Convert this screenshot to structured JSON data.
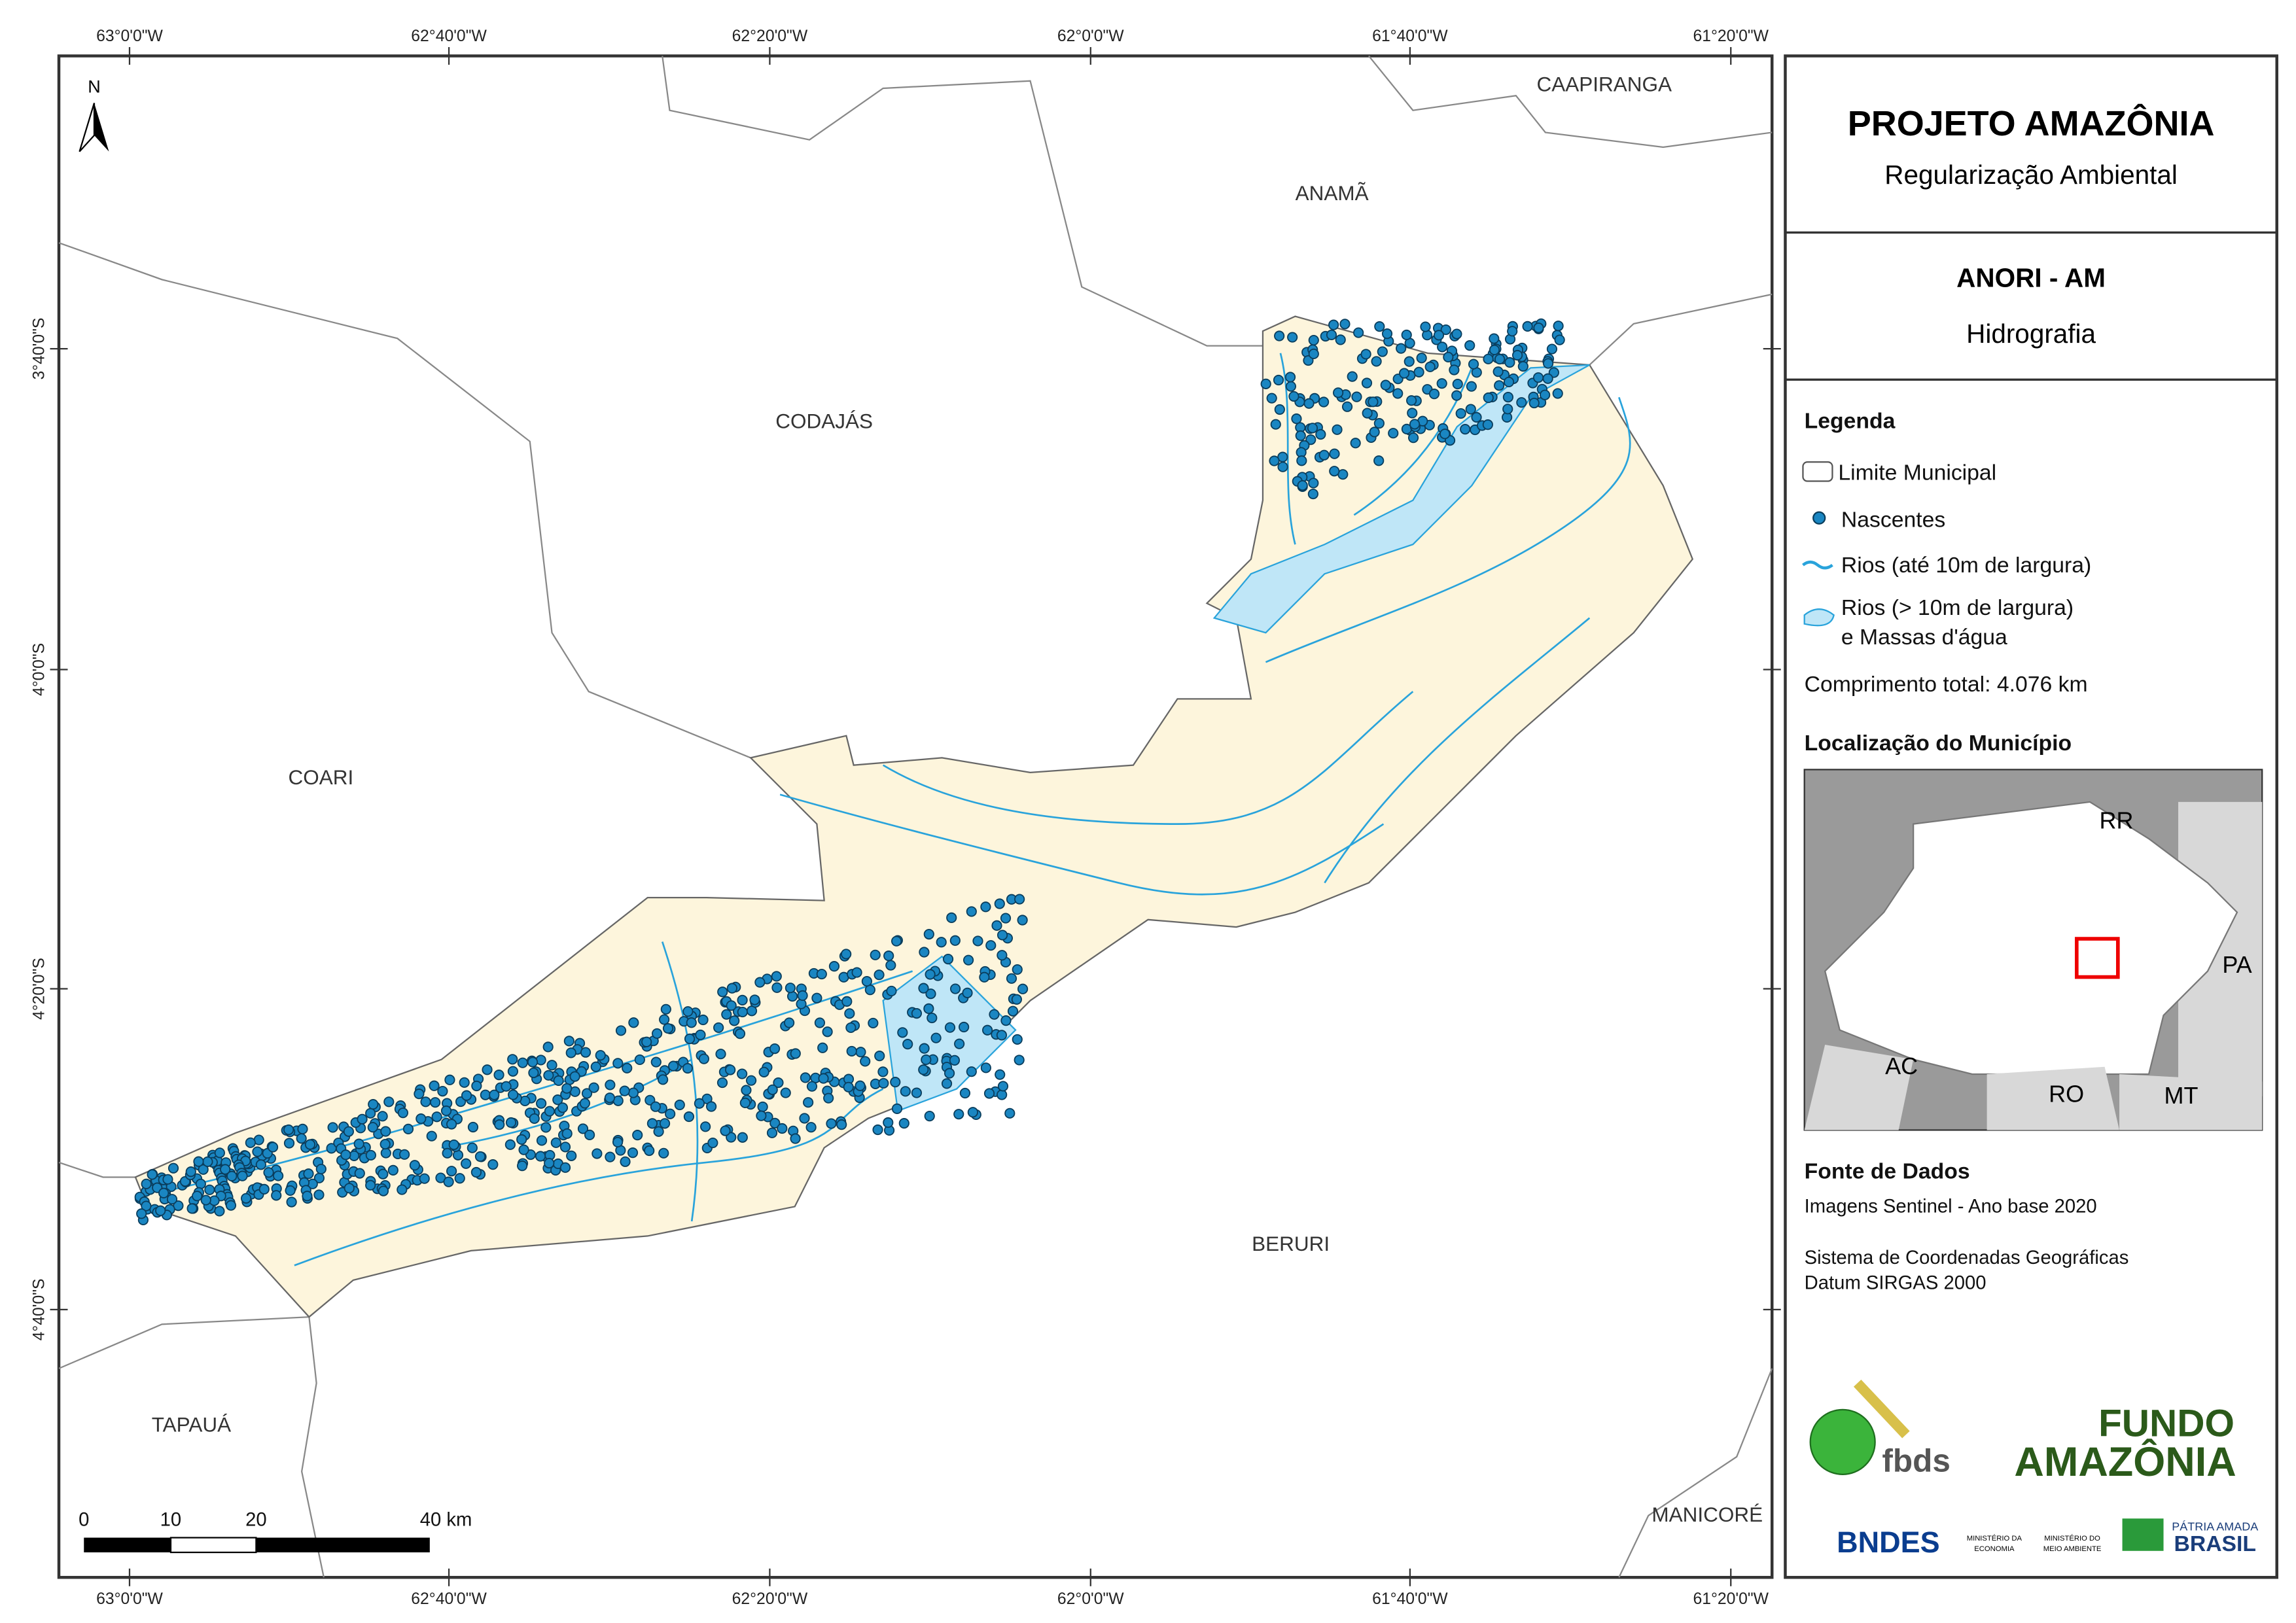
{
  "map": {
    "north_label": "N",
    "lon_labels": [
      "63°0'0\"W",
      "62°40'0\"W",
      "62°20'0\"W",
      "62°0'0\"W",
      "61°40'0\"W",
      "61°20'0\"W"
    ],
    "lat_labels": [
      "3°40'0\"S",
      "4°0'0\"S",
      "4°20'0\"S",
      "4°40'0\"S"
    ],
    "places": [
      "CAAPIRANGA",
      "ANAMÃ",
      "CODAJÁS",
      "COARI",
      "BERURI",
      "TAPAUÁ",
      "MANICORÉ"
    ],
    "scale_labels": [
      "0",
      "10",
      "20",
      "40 km"
    ]
  },
  "panel": {
    "title": "PROJETO AMAZÔNIA",
    "subtitle": "Regularização Ambiental",
    "municipality": "ANORI - AM",
    "theme": "Hidrografia",
    "legend": {
      "title": "Legenda",
      "items": [
        "Limite Municipal",
        "Nascentes",
        "Rios (até 10m de largura)",
        "Rios (> 10m de largura)",
        "e Massas d'água"
      ],
      "total": "Comprimento total:  4.076 km"
    },
    "location": {
      "title": "Localização do Município",
      "states": [
        "RR",
        "PA",
        "AC",
        "RO",
        "MT"
      ]
    },
    "sources": {
      "title": "Fonte de Dados",
      "lines": [
        "Imagens Sentinel - Ano base 2020",
        "Sistema de Coordenadas Geográficas",
        "Datum SIRGAS 2000"
      ]
    },
    "logos": [
      "fbds",
      "FUNDO",
      "AMAZÔNIA",
      "BNDES",
      "MINISTÉRIO DA",
      "ECONOMIA",
      "MINISTÉRIO DO",
      "MEIO AMBIENTE",
      "PÁTRIA AMADA",
      "BRASIL"
    ]
  }
}
